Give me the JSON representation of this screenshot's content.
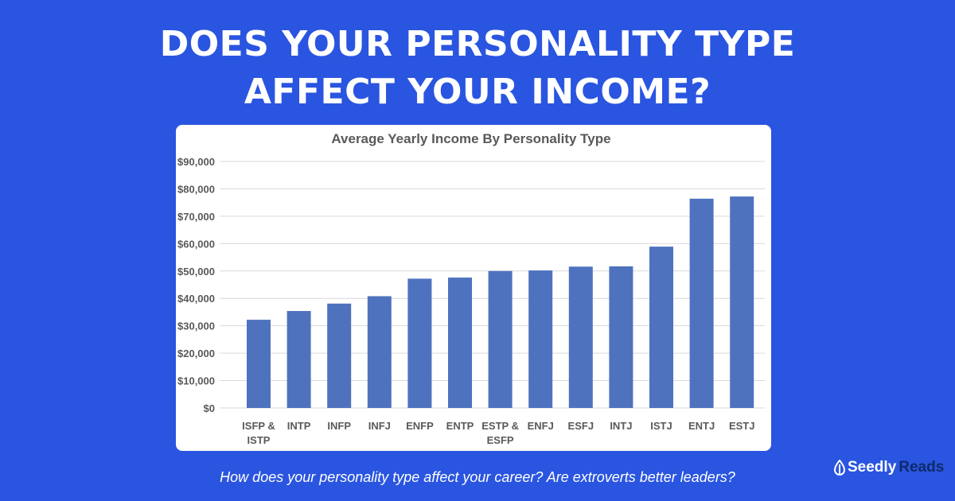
{
  "headline": {
    "line1": "DOES YOUR PERSONALITY TYPE",
    "line2": "AFFECT YOUR INCOME?"
  },
  "caption": "How does your personality type affect your career? Are extroverts better leaders?",
  "logo": {
    "part1": "Seedly",
    "part2": "Reads"
  },
  "colors": {
    "background": "#2a55e0",
    "bar": "#4e72be",
    "logo_dark": "#0f2a6b"
  },
  "chart_data": {
    "type": "bar",
    "title": "Average Yearly Income By Personality Type",
    "xlabel": "",
    "ylabel": "",
    "categories": [
      "ISFP & ISTP",
      "INTP",
      "INFP",
      "INFJ",
      "ENFP",
      "ENTP",
      "ESTP & ESFP",
      "ENFJ",
      "ESFJ",
      "INTJ",
      "ISTJ",
      "ENTJ",
      "ESTJ"
    ],
    "values": [
      32200,
      35400,
      38100,
      40800,
      47200,
      47600,
      50000,
      50200,
      51600,
      51700,
      58900,
      76400,
      77200
    ],
    "ylim": [
      0,
      90000
    ],
    "yticks": [
      0,
      10000,
      20000,
      30000,
      40000,
      50000,
      60000,
      70000,
      80000,
      90000
    ],
    "ytick_labels": [
      "$0",
      "$10,000",
      "$20,000",
      "$30,000",
      "$40,000",
      "$50,000",
      "$60,000",
      "$70,000",
      "$80,000",
      "$90,000"
    ],
    "grid": true,
    "legend": "none"
  }
}
